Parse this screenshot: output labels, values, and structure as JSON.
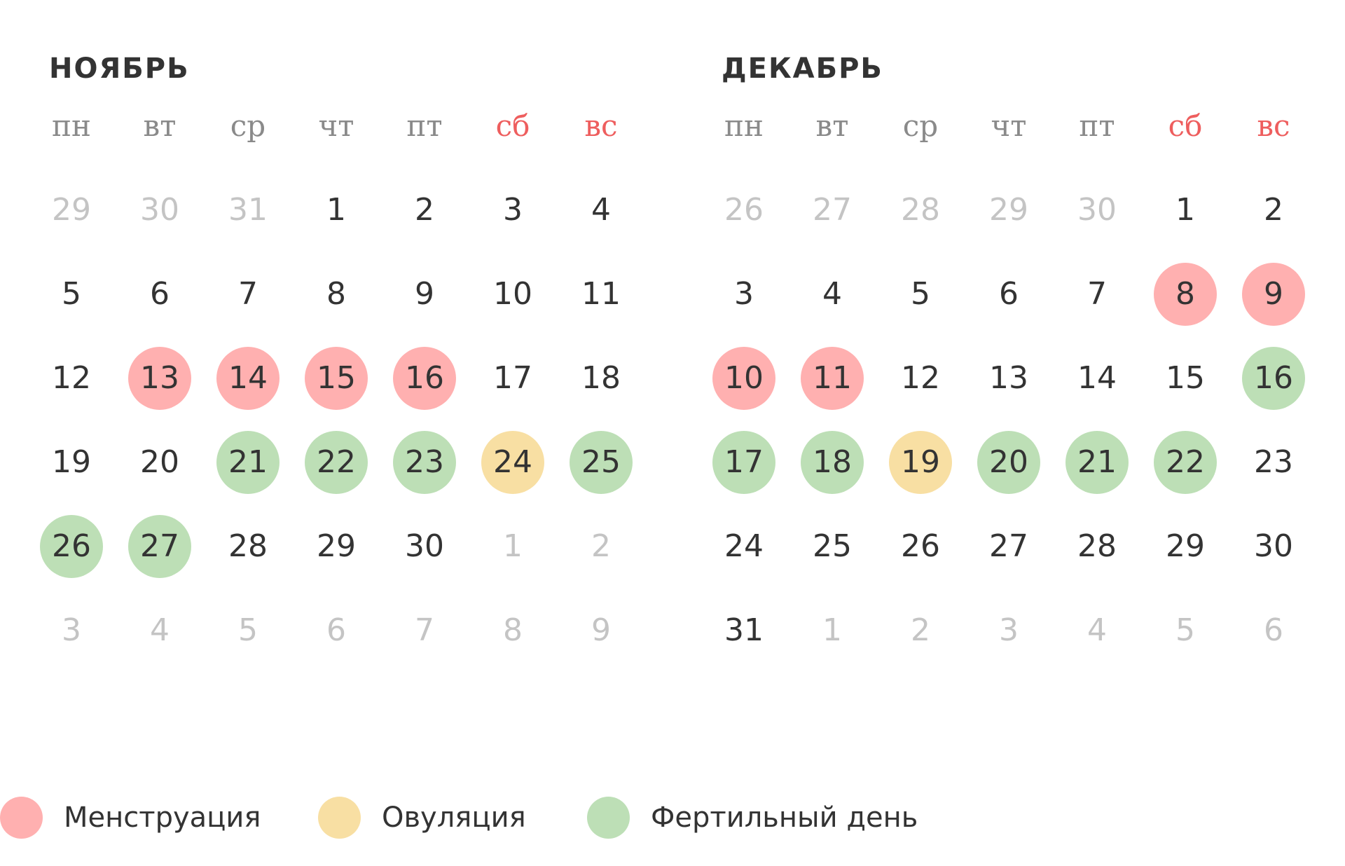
{
  "colors": {
    "menstruation": "#ffb0b0",
    "ovulation": "#f8dfa3",
    "fertile": "#bddfb6",
    "weekend_header": "#ee5e5e",
    "weekday_header": "#8a8a8a",
    "muted_day": "#c4c4c4",
    "text": "#333333"
  },
  "weekdays": [
    "пн",
    "вт",
    "ср",
    "чт",
    "пт",
    "сб",
    "вс"
  ],
  "months": [
    {
      "title": "НОЯБРЬ",
      "weeks": [
        [
          {
            "d": "29",
            "muted": true
          },
          {
            "d": "30",
            "muted": true
          },
          {
            "d": "31",
            "muted": true
          },
          {
            "d": "1"
          },
          {
            "d": "2"
          },
          {
            "d": "3"
          },
          {
            "d": "4"
          }
        ],
        [
          {
            "d": "5"
          },
          {
            "d": "6"
          },
          {
            "d": "7"
          },
          {
            "d": "8"
          },
          {
            "d": "9"
          },
          {
            "d": "10"
          },
          {
            "d": "11"
          }
        ],
        [
          {
            "d": "12"
          },
          {
            "d": "13",
            "mark": "menstruation"
          },
          {
            "d": "14",
            "mark": "menstruation"
          },
          {
            "d": "15",
            "mark": "menstruation"
          },
          {
            "d": "16",
            "mark": "menstruation"
          },
          {
            "d": "17"
          },
          {
            "d": "18"
          }
        ],
        [
          {
            "d": "19"
          },
          {
            "d": "20"
          },
          {
            "d": "21",
            "mark": "fertile"
          },
          {
            "d": "22",
            "mark": "fertile"
          },
          {
            "d": "23",
            "mark": "fertile"
          },
          {
            "d": "24",
            "mark": "ovulation"
          },
          {
            "d": "25",
            "mark": "fertile"
          }
        ],
        [
          {
            "d": "26",
            "mark": "fertile"
          },
          {
            "d": "27",
            "mark": "fertile"
          },
          {
            "d": "28"
          },
          {
            "d": "29"
          },
          {
            "d": "30"
          },
          {
            "d": "1",
            "muted": true
          },
          {
            "d": "2",
            "muted": true
          }
        ],
        [
          {
            "d": "3",
            "muted": true
          },
          {
            "d": "4",
            "muted": true
          },
          {
            "d": "5",
            "muted": true
          },
          {
            "d": "6",
            "muted": true
          },
          {
            "d": "7",
            "muted": true
          },
          {
            "d": "8",
            "muted": true
          },
          {
            "d": "9",
            "muted": true
          }
        ]
      ]
    },
    {
      "title": "ДЕКАБРЬ",
      "weeks": [
        [
          {
            "d": "26",
            "muted": true
          },
          {
            "d": "27",
            "muted": true
          },
          {
            "d": "28",
            "muted": true
          },
          {
            "d": "29",
            "muted": true
          },
          {
            "d": "30",
            "muted": true
          },
          {
            "d": "1"
          },
          {
            "d": "2"
          }
        ],
        [
          {
            "d": "3"
          },
          {
            "d": "4"
          },
          {
            "d": "5"
          },
          {
            "d": "6"
          },
          {
            "d": "7"
          },
          {
            "d": "8",
            "mark": "menstruation"
          },
          {
            "d": "9",
            "mark": "menstruation"
          }
        ],
        [
          {
            "d": "10",
            "mark": "menstruation"
          },
          {
            "d": "11",
            "mark": "menstruation"
          },
          {
            "d": "12"
          },
          {
            "d": "13"
          },
          {
            "d": "14"
          },
          {
            "d": "15"
          },
          {
            "d": "16",
            "mark": "fertile"
          }
        ],
        [
          {
            "d": "17",
            "mark": "fertile"
          },
          {
            "d": "18",
            "mark": "fertile"
          },
          {
            "d": "19",
            "mark": "ovulation"
          },
          {
            "d": "20",
            "mark": "fertile"
          },
          {
            "d": "21",
            "mark": "fertile"
          },
          {
            "d": "22",
            "mark": "fertile"
          },
          {
            "d": "23"
          }
        ],
        [
          {
            "d": "24"
          },
          {
            "d": "25"
          },
          {
            "d": "26"
          },
          {
            "d": "27"
          },
          {
            "d": "28"
          },
          {
            "d": "29"
          },
          {
            "d": "30"
          }
        ],
        [
          {
            "d": "31"
          },
          {
            "d": "1",
            "muted": true
          },
          {
            "d": "2",
            "muted": true
          },
          {
            "d": "3",
            "muted": true
          },
          {
            "d": "4",
            "muted": true
          },
          {
            "d": "5",
            "muted": true
          },
          {
            "d": "6",
            "muted": true
          }
        ]
      ]
    }
  ],
  "legend": [
    {
      "key": "menstruation",
      "label": "Менструация"
    },
    {
      "key": "ovulation",
      "label": "Овуляция"
    },
    {
      "key": "fertile",
      "label": "Фертильный день"
    }
  ]
}
